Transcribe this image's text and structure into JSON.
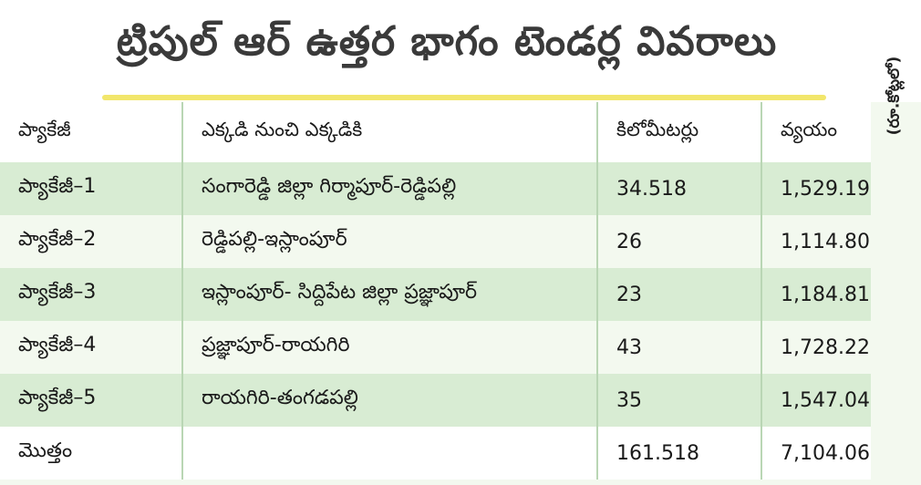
{
  "title": "ట్రిపుల్ ఆర్ ఉత్తర భాగం టెండర్ల వివరాలు",
  "unit_note": "(రూ.కోట్లలో)",
  "colors": {
    "title_rule": "#f2e66b",
    "row_band": "#d8ecd3",
    "row_light": "#f3f9ef",
    "grid_line": "#b9d6b4"
  },
  "table": {
    "headers": [
      "ప్యాకేజీ",
      "ఎక్కడి నుంచి ఎక్కడికి",
      "కిలోమీటర్లు",
      "వ్యయం"
    ],
    "rows": [
      {
        "package": "ప్యాకేజీ–1",
        "route": "సంగారెడ్డి జిల్లా గిర్మాపూర్-రెడ్డిపల్లి",
        "km": "34.518",
        "cost": "1,529.19"
      },
      {
        "package": "ప్యాకేజీ–2",
        "route": "రెడ్డిపల్లి-ఇస్లాంపూర్",
        "km": "26",
        "cost": "1,114.80"
      },
      {
        "package": "ప్యాకేజీ–3",
        "route": "ఇస్లాంపూర్- సిద్దిపేట జిల్లా ప్రజ్ఞాపూర్",
        "km": "23",
        "cost": "1,184.81"
      },
      {
        "package": "ప్యాకేజీ–4",
        "route": "ప్రజ్ఞాపూర్-రాయగిరి",
        "km": "43",
        "cost": "1,728.22"
      },
      {
        "package": "ప్యాకేజీ–5",
        "route": "రాయగిరి-తంగడపల్లి",
        "km": "35",
        "cost": "1,547.04"
      }
    ],
    "total": {
      "label": "మొత్తం",
      "km": "161.518",
      "cost": "7,104.06"
    }
  }
}
